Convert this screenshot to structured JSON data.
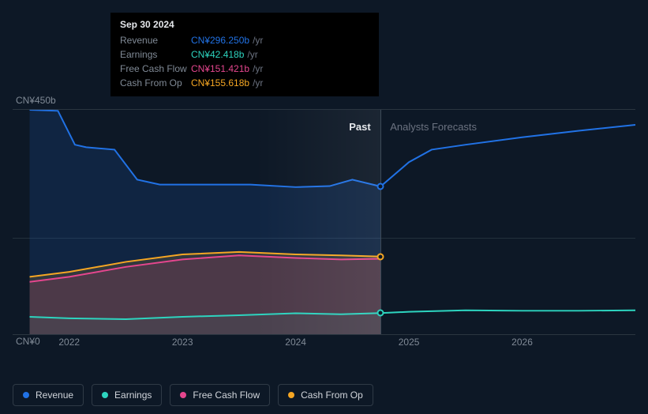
{
  "chart": {
    "type": "area",
    "background_color": "#0d1826",
    "grid_color": "#2a3540",
    "xlim": [
      2021.5,
      2027.0
    ],
    "ylim": [
      0,
      450
    ],
    "ylabel_top": "CN¥450b",
    "ylabel_bottom": "CN¥0",
    "x_ticks": [
      2022,
      2023,
      2024,
      2025,
      2026
    ],
    "past_end": 2024.75,
    "region_labels": {
      "past": "Past",
      "forecast": "Analysts Forecasts"
    },
    "cursor_x": 2024.75,
    "series": {
      "revenue": {
        "label": "Revenue",
        "color": "#2172e5",
        "fill_opacity": 0.15,
        "points": [
          [
            2021.65,
            450
          ],
          [
            2021.9,
            448
          ],
          [
            2022.05,
            380
          ],
          [
            2022.15,
            375
          ],
          [
            2022.4,
            370
          ],
          [
            2022.6,
            310
          ],
          [
            2022.8,
            300
          ],
          [
            2023.0,
            300
          ],
          [
            2023.3,
            300
          ],
          [
            2023.6,
            300
          ],
          [
            2024.0,
            295
          ],
          [
            2024.3,
            297
          ],
          [
            2024.5,
            310
          ],
          [
            2024.75,
            296.25
          ],
          [
            2025.0,
            345
          ],
          [
            2025.2,
            370
          ],
          [
            2025.5,
            380
          ],
          [
            2026.0,
            395
          ],
          [
            2026.5,
            408
          ],
          [
            2027.0,
            420
          ]
        ]
      },
      "cash_from_op": {
        "label": "Cash From Op",
        "color": "#f5a623",
        "fill_opacity": 0.15,
        "points": [
          [
            2021.65,
            115
          ],
          [
            2022.0,
            125
          ],
          [
            2022.5,
            145
          ],
          [
            2023.0,
            160
          ],
          [
            2023.5,
            165
          ],
          [
            2024.0,
            160
          ],
          [
            2024.4,
            158
          ],
          [
            2024.75,
            155.6
          ]
        ]
      },
      "free_cash_flow": {
        "label": "Free Cash Flow",
        "color": "#e5468e",
        "fill_opacity": 0.15,
        "points": [
          [
            2021.65,
            105
          ],
          [
            2022.0,
            115
          ],
          [
            2022.5,
            135
          ],
          [
            2023.0,
            150
          ],
          [
            2023.5,
            158
          ],
          [
            2024.0,
            153
          ],
          [
            2024.4,
            150
          ],
          [
            2024.75,
            151.4
          ]
        ]
      },
      "earnings": {
        "label": "Earnings",
        "color": "#2dd4bf",
        "fill_opacity": 0.05,
        "points": [
          [
            2021.65,
            35
          ],
          [
            2022.0,
            32
          ],
          [
            2022.5,
            30
          ],
          [
            2023.0,
            35
          ],
          [
            2023.5,
            38
          ],
          [
            2024.0,
            42
          ],
          [
            2024.4,
            40
          ],
          [
            2024.75,
            42.4
          ],
          [
            2025.0,
            45
          ],
          [
            2025.5,
            48
          ],
          [
            2026.0,
            47
          ],
          [
            2026.5,
            47
          ],
          [
            2027.0,
            48
          ]
        ]
      }
    },
    "cursor_dots": [
      {
        "series": "revenue",
        "y": 296.25
      },
      {
        "series": "cash_from_op",
        "y": 155.6
      },
      {
        "series": "earnings",
        "y": 42.4
      }
    ]
  },
  "tooltip": {
    "date": "Sep 30 2024",
    "suffix": "/yr",
    "rows": [
      {
        "label": "Revenue",
        "value": "CN¥296.250b",
        "color": "#2172e5"
      },
      {
        "label": "Earnings",
        "value": "CN¥42.418b",
        "color": "#2dd4bf"
      },
      {
        "label": "Free Cash Flow",
        "value": "CN¥151.421b",
        "color": "#e5468e"
      },
      {
        "label": "Cash From Op",
        "value": "CN¥155.618b",
        "color": "#f5a623"
      }
    ]
  },
  "legend_order": [
    "revenue",
    "earnings",
    "free_cash_flow",
    "cash_from_op"
  ]
}
